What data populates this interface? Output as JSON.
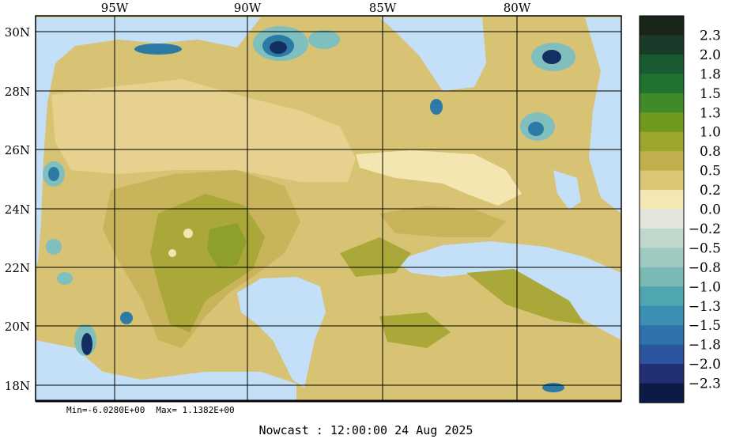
{
  "map": {
    "lon_labels": [
      "95W",
      "90W",
      "85W",
      "80W"
    ],
    "lat_labels": [
      "30N",
      "28N",
      "26N",
      "24N",
      "22N",
      "20N",
      "18N"
    ],
    "colors": {
      "water": "#c4dff8",
      "land_base": "#d8c274",
      "land_light": "#e6d28e",
      "land_pale": "#f3e6b0",
      "land_mid": "#c9b45c",
      "land_olive": "#a9a838",
      "land_green": "#8ea02a",
      "deep_blue": "#133063",
      "mid_blue": "#2d7aa6",
      "teal": "#7fbfbe",
      "pale_teal": "#cde3dc"
    }
  },
  "colorbar": {
    "labels": [
      "2.3",
      "2.0",
      "1.8",
      "1.5",
      "1.3",
      "1.0",
      "0.8",
      "0.5",
      "0.2",
      "0.0",
      "−0.2",
      "−0.5",
      "−0.8",
      "−1.0",
      "−1.3",
      "−1.5",
      "−1.8",
      "−2.0",
      "−2.3"
    ],
    "colors": [
      "#1a251a",
      "#1b3a2a",
      "#1a5a30",
      "#1e7330",
      "#3f8a2a",
      "#6f9a1e",
      "#9ea52d",
      "#bfb04d",
      "#dcc676",
      "#f3e8b4",
      "#e2e6da",
      "#bfd8cc",
      "#9fcac2",
      "#79bab5",
      "#4fa6b0",
      "#3a8fb3",
      "#2f73ad",
      "#2c55a0",
      "#222f73",
      "#0d1a45"
    ]
  },
  "stats": {
    "min": "Min=-6.0280E+00",
    "max": "Max= 1.1382E+00"
  },
  "title": "Nowcast : 12:00:00  24 Aug 2025"
}
